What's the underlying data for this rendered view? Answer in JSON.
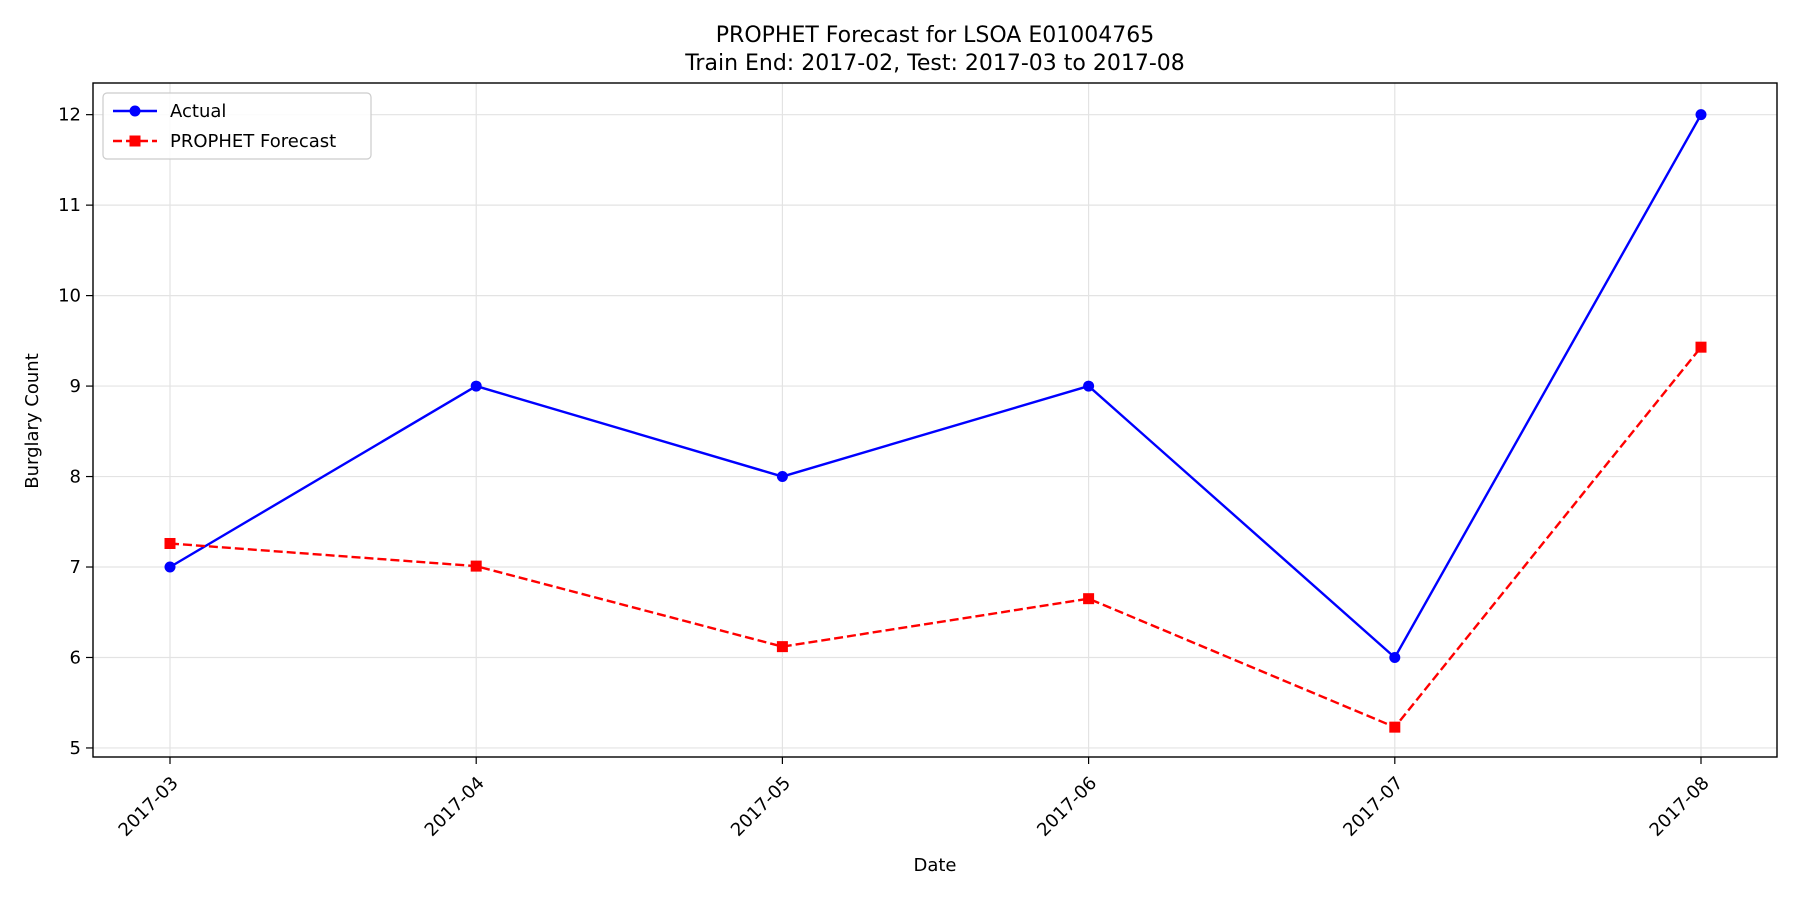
{
  "chart_data": {
    "type": "line",
    "title": "PROPHET Forecast for LSOA E01004765",
    "subtitle": "Train End: 2017-02, Test: 2017-03 to 2017-08",
    "xlabel": "Date",
    "ylabel": "Burglary Count",
    "categories": [
      "2017-03",
      "2017-04",
      "2017-05",
      "2017-06",
      "2017-07",
      "2017-08"
    ],
    "ylim": [
      4.9,
      12.35
    ],
    "yticks": [
      5,
      6,
      7,
      8,
      9,
      10,
      11,
      12
    ],
    "grid": true,
    "legend_position": "top-left",
    "series": [
      {
        "name": "Actual",
        "values": [
          7,
          9,
          8,
          9,
          6,
          12
        ],
        "color": "#0000ff",
        "marker": "circle",
        "line_style": "solid"
      },
      {
        "name": "PROPHET Forecast",
        "values": [
          7.26,
          7.01,
          6.12,
          6.65,
          5.23,
          9.43
        ],
        "color": "#ff0000",
        "marker": "square",
        "line_style": "dashed"
      }
    ]
  }
}
